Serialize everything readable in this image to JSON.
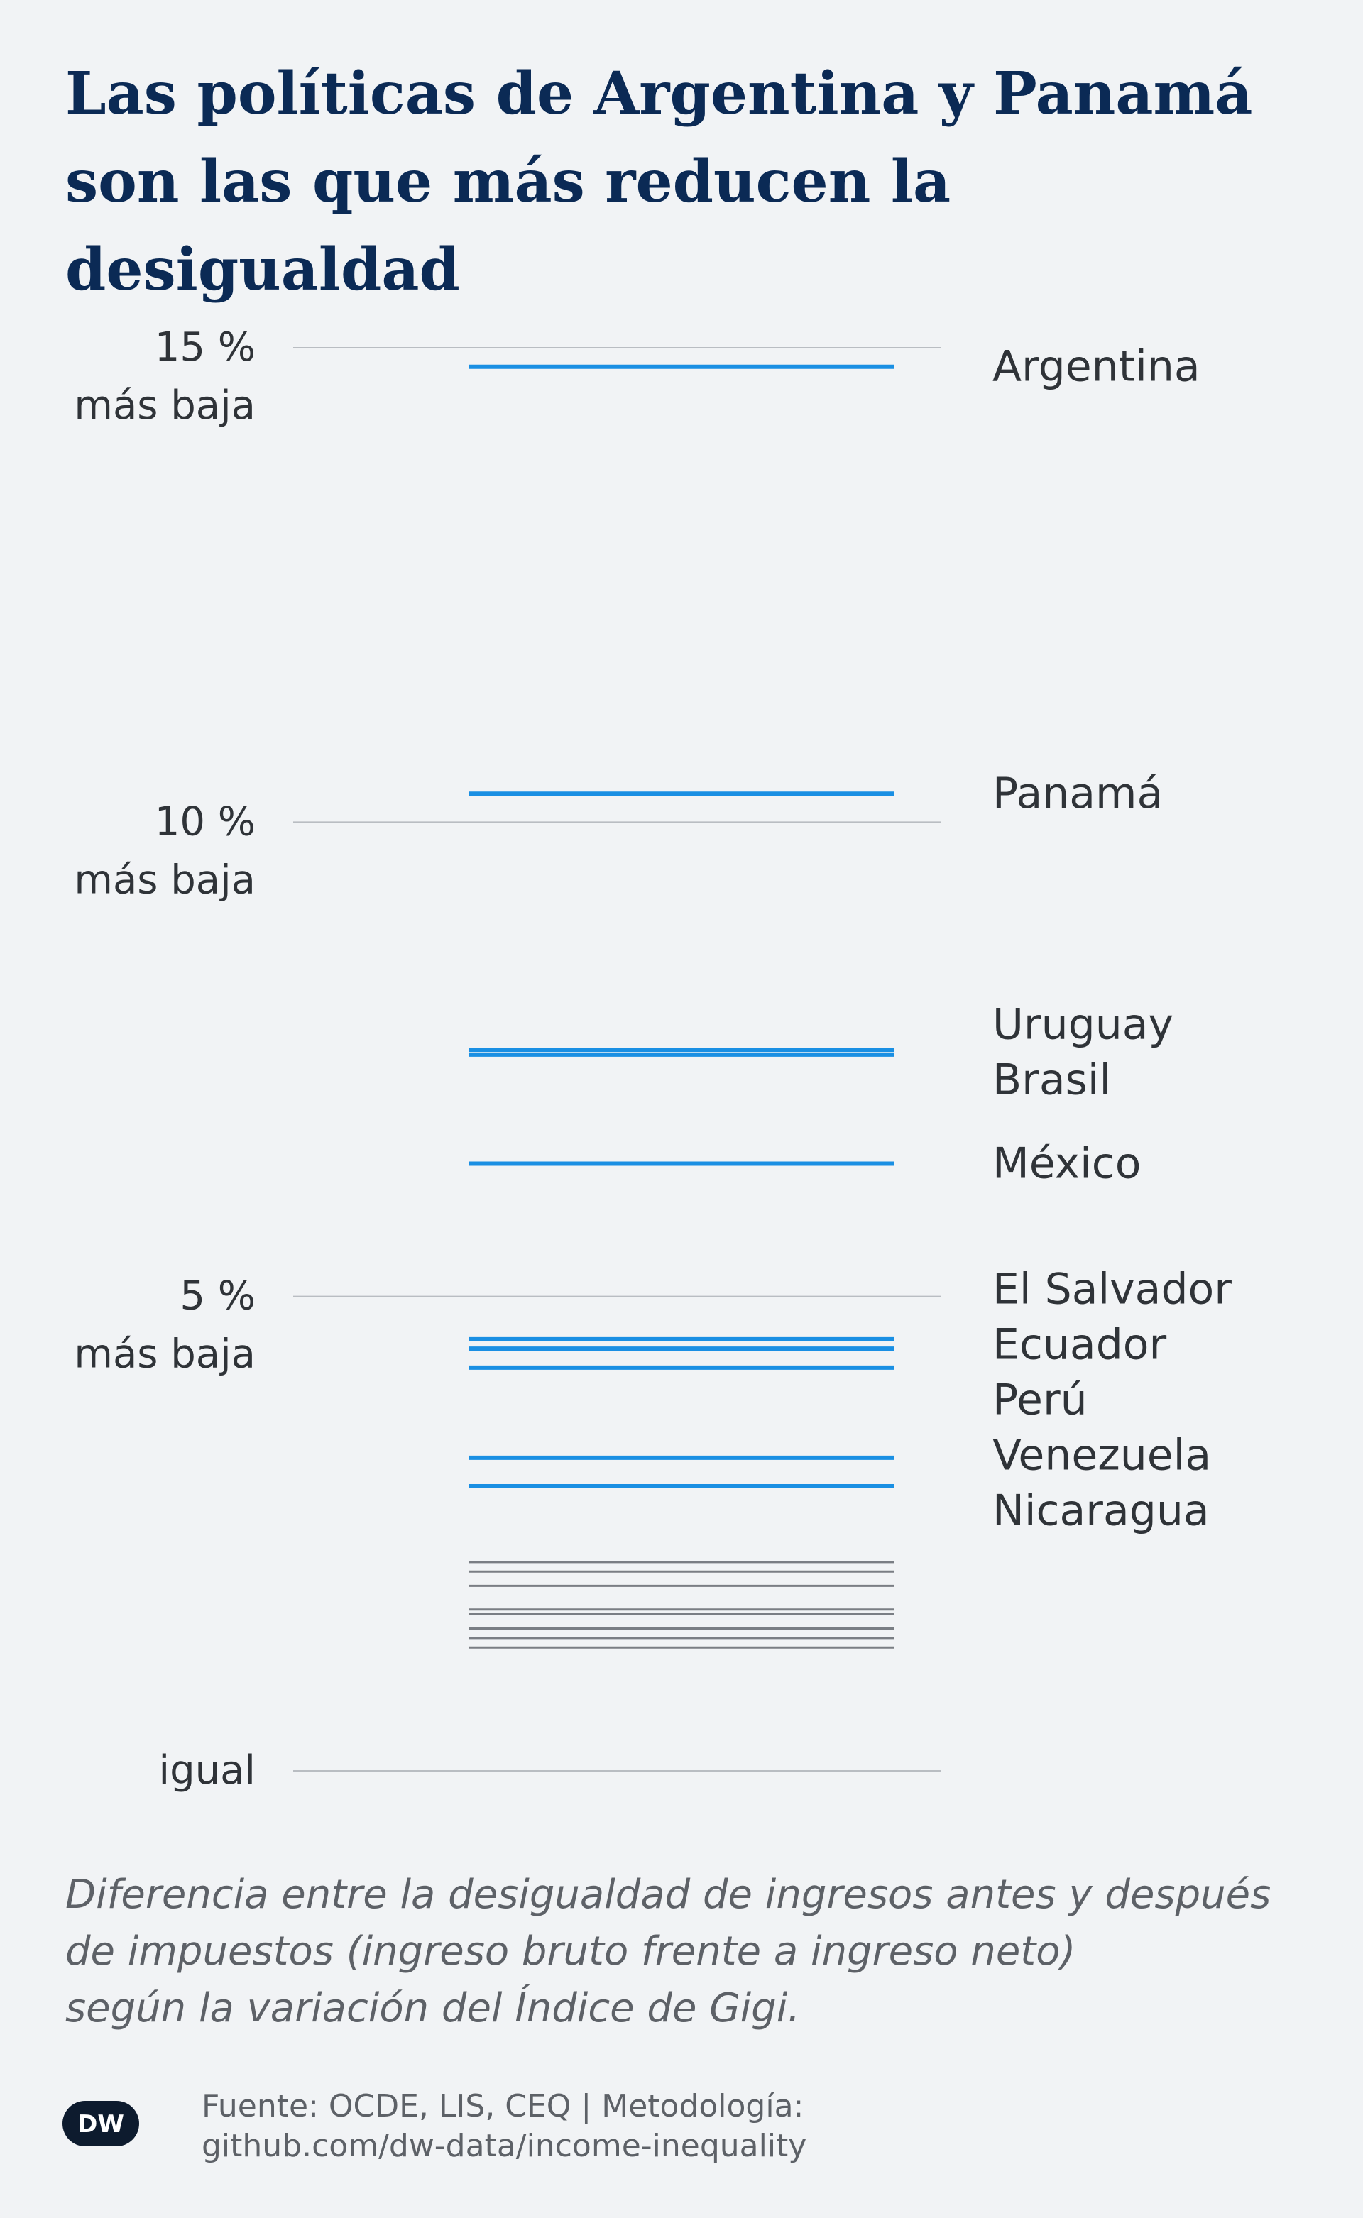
{
  "title": {
    "line1": "Las políticas de Argentina y Panamá",
    "line2": "son las que más reducen la desigualdad"
  },
  "caption": {
    "line1": "Diferencia entre la desigualdad de ingresos antes y después",
    "line2": "de impuestos (ingreso bruto frente a ingreso neto)",
    "line3": "según la variación del Índice de Gigi."
  },
  "footer": {
    "logo_text": "DW",
    "source_line1": "Fuente: OCDE, LIS, CEQ | Metodología:",
    "source_line2": "github.com/dw-data/income-inequality"
  },
  "colors": {
    "highlight": "#1a8fe3",
    "other": "#7a7e84",
    "grid": "#b9bdc2",
    "title": "#0b2a55"
  },
  "chart_data": {
    "type": "line",
    "ylim": [
      0,
      15
    ],
    "y_ticks": [
      {
        "value": 15,
        "line1": "15 %",
        "line2": "más baja"
      },
      {
        "value": 10,
        "line1": "10 %",
        "line2": "más baja"
      },
      {
        "value": 5,
        "line1": "5 %",
        "line2": "más baja"
      },
      {
        "value": 0,
        "line1": "igual",
        "line2": ""
      }
    ],
    "highlighted": [
      {
        "name": "Argentina",
        "value": 14.8
      },
      {
        "name": "Panamá",
        "value": 10.3
      },
      {
        "name": "Uruguay",
        "value": 7.6
      },
      {
        "name": "Brasil",
        "value": 7.55
      },
      {
        "name": "México",
        "value": 6.4
      },
      {
        "name": "El Salvador",
        "value": 4.55
      },
      {
        "name": "Ecuador",
        "value": 4.45
      },
      {
        "name": "Perú",
        "value": 4.25
      },
      {
        "name": "Venezuela",
        "value": 3.3
      },
      {
        "name": "Nicaragua",
        "value": 3.0
      }
    ],
    "others": [
      2.2,
      2.1,
      1.95,
      1.7,
      1.65,
      1.5,
      1.4,
      1.3
    ],
    "grid": true
  }
}
